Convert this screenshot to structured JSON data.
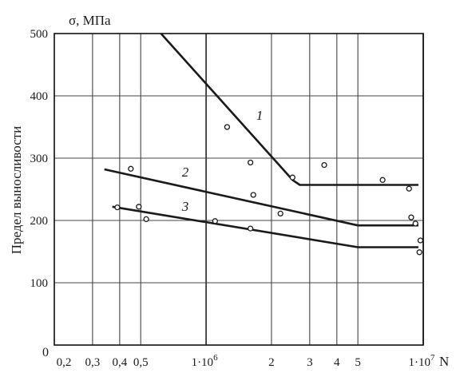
{
  "chart_data": {
    "type": "line",
    "xscale": "log",
    "xlim": [
      200000,
      10000000
    ],
    "ylim": [
      0,
      500
    ],
    "ylabel": "Предел выносливости",
    "yunit": "σ, МПа",
    "xunit": "N",
    "yticks": [
      {
        "value": 100,
        "label": "100"
      },
      {
        "value": 200,
        "label": "200"
      },
      {
        "value": 300,
        "label": "300"
      },
      {
        "value": 400,
        "label": "400"
      },
      {
        "value": 500,
        "label": "500"
      }
    ],
    "origin_label": "0",
    "xticks": [
      {
        "value": 200000,
        "label": "0,2"
      },
      {
        "value": 300000,
        "label": "0,3"
      },
      {
        "value": 400000,
        "label": "0,4"
      },
      {
        "value": 500000,
        "label": "0,5"
      },
      {
        "value": 1000000,
        "label": "1·10",
        "exp": "6"
      },
      {
        "value": 2000000,
        "label": "2"
      },
      {
        "value": 3000000,
        "label": "3"
      },
      {
        "value": 4000000,
        "label": "4"
      },
      {
        "value": 5000000,
        "label": "5"
      },
      {
        "value": 10000000,
        "label": "1·10",
        "exp": "7"
      }
    ],
    "series": [
      {
        "name": "1",
        "points": [
          [
            620000,
            500
          ],
          [
            2500000,
            265
          ],
          [
            2700000,
            257
          ],
          [
            9500000,
            257
          ]
        ]
      },
      {
        "name": "2",
        "points": [
          [
            340000,
            282
          ],
          [
            5000000,
            192
          ],
          [
            9500000,
            192
          ]
        ]
      },
      {
        "name": "3",
        "points": [
          [
            370000,
            222
          ],
          [
            5000000,
            157
          ],
          [
            9500000,
            157
          ]
        ]
      }
    ],
    "scatter": [
      [
        390000,
        221
      ],
      [
        450000,
        283
      ],
      [
        490000,
        222
      ],
      [
        530000,
        202
      ],
      [
        1100000,
        199
      ],
      [
        1250000,
        350
      ],
      [
        1600000,
        293
      ],
      [
        1600000,
        187
      ],
      [
        1650000,
        241
      ],
      [
        2200000,
        211
      ],
      [
        2500000,
        269
      ],
      [
        3500000,
        289
      ],
      [
        6500000,
        265
      ],
      [
        8600000,
        251
      ],
      [
        8800000,
        205
      ],
      [
        9200000,
        195
      ],
      [
        9700000,
        168
      ],
      [
        9600000,
        149
      ]
    ]
  }
}
